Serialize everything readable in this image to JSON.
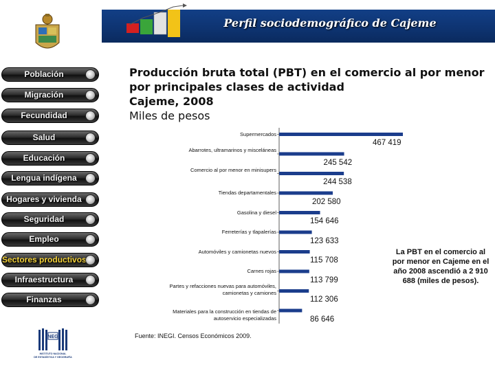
{
  "header": {
    "title": "Perfil sociodemográfico de Cajeme"
  },
  "nav": {
    "items": [
      {
        "label": "Población",
        "active": false
      },
      {
        "label": "Migración",
        "active": false
      },
      {
        "label": "Fecundidad",
        "active": false
      },
      {
        "label": "Salud",
        "active": false
      },
      {
        "label": "Educación",
        "active": false
      },
      {
        "label": "Lengua indígena",
        "active": false
      },
      {
        "label": "Hogares y vivienda",
        "active": false
      },
      {
        "label": "Seguridad",
        "active": false
      },
      {
        "label": "Empleo",
        "active": false
      },
      {
        "label": "Sectores productivos",
        "active": true
      },
      {
        "label": "Infraestructura",
        "active": false
      },
      {
        "label": "Finanzas",
        "active": false
      }
    ]
  },
  "logo": {
    "text": "INEGI",
    "caption": "INSTITUTO NACIONAL DE ESTADÍSTICA Y GEOGRAFÍA"
  },
  "heading": {
    "line1": "Producción bruta total (PBT) en el comercio al por menor",
    "line2": "por principales clases de actividad",
    "line3": "Cajeme, 2008",
    "line4": "Miles de pesos"
  },
  "chart_data": {
    "type": "bar",
    "orientation": "horizontal",
    "categories": [
      "Supermercados",
      "Abarrotes, ultramarinos y misceláneas",
      "Comercio al por menor en minisupers",
      "Tiendas departamentales",
      "Gasolina y diesel",
      "Ferreterías y tlapalerías",
      "Automóviles y camionetas nuevos",
      "Carnes rojas",
      "Partes y refacciones nuevas para automóviles, camionetas y camiones",
      "Materiales para la construcción en tiendas de autoservicio especializadas"
    ],
    "values": [
      467419,
      245542,
      244538,
      202580,
      154646,
      123633,
      115708,
      113799,
      112306,
      86646
    ],
    "value_labels": [
      "467 419",
      "245 542",
      "244 538",
      "202 580",
      "154 646",
      "123 633",
      "115 708",
      "113 799",
      "112 306",
      "86 646"
    ],
    "xlim": [
      0,
      467419
    ],
    "bar_color": "#1b3d8c",
    "grid": false
  },
  "source": "Fuente: INEGI. Censos Económicos 2009.",
  "note": "La PBT en el comercio al por menor en Cajeme en el año 2008 ascendió a  2 910 688 (miles de pesos).",
  "colors": {
    "header": "#0e3472",
    "nav_active": "#f4d23a",
    "bar": "#1b3d8c"
  }
}
